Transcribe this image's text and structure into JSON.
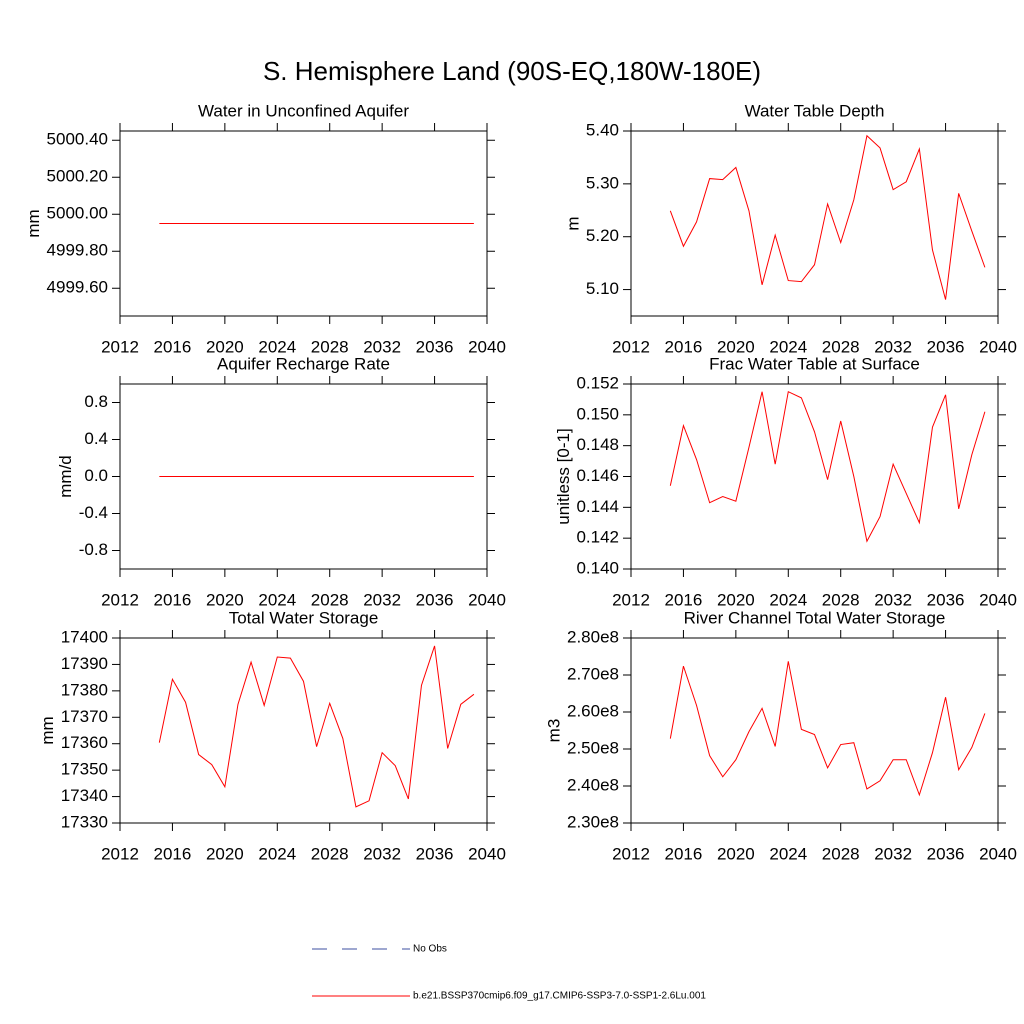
{
  "title": "S. Hemisphere Land (90S-EQ,180W-180E)",
  "chart_data": [
    {
      "type": "line",
      "title": "Water in Unconfined Aquifer",
      "ylabel": "mm",
      "color": "#ff0000",
      "x": [
        2015,
        2016,
        2017,
        2018,
        2019,
        2020,
        2021,
        2022,
        2023,
        2024,
        2025,
        2026,
        2027,
        2028,
        2029,
        2030,
        2031,
        2032,
        2033,
        2034,
        2035,
        2036,
        2037,
        2038,
        2039
      ],
      "values": [
        4999.95,
        4999.95,
        4999.95,
        4999.95,
        4999.95,
        4999.95,
        4999.95,
        4999.95,
        4999.95,
        4999.95,
        4999.95,
        4999.95,
        4999.95,
        4999.95,
        4999.95,
        4999.95,
        4999.95,
        4999.95,
        4999.95,
        4999.95,
        4999.95,
        4999.95,
        4999.95,
        4999.95,
        4999.95
      ],
      "xlim": [
        2012,
        2040
      ],
      "xticks": [
        2012,
        2016,
        2020,
        2024,
        2028,
        2032,
        2036,
        2040
      ],
      "ylim": [
        4999.45,
        5000.45
      ],
      "yticks": [
        {
          "value": 4999.6,
          "label": "4999.60"
        },
        {
          "value": 4999.8,
          "label": "4999.80"
        },
        {
          "value": 5000.0,
          "label": "5000.00"
        },
        {
          "value": 5000.2,
          "label": "5000.20"
        },
        {
          "value": 5000.4,
          "label": "5000.40"
        }
      ]
    },
    {
      "type": "line",
      "title": "Water Table Depth",
      "ylabel": "m",
      "color": "#ff0000",
      "x": [
        2015,
        2016,
        2017,
        2018,
        2019,
        2020,
        2021,
        2022,
        2023,
        2024,
        2025,
        2026,
        2027,
        2028,
        2029,
        2030,
        2031,
        2032,
        2033,
        2034,
        2035,
        2036,
        2037,
        2038,
        2039
      ],
      "values": [
        5.249,
        5.182,
        5.228,
        5.31,
        5.308,
        5.331,
        5.249,
        5.109,
        5.203,
        5.117,
        5.115,
        5.147,
        5.262,
        5.189,
        5.27,
        5.391,
        5.368,
        5.289,
        5.304,
        5.366,
        5.175,
        5.081,
        5.282,
        5.211,
        5.142
      ],
      "xlim": [
        2012,
        2040
      ],
      "xticks": [
        2012,
        2016,
        2020,
        2024,
        2028,
        2032,
        2036,
        2040
      ],
      "ylim": [
        5.05,
        5.4
      ],
      "yticks": [
        {
          "value": 5.1,
          "label": "5.10"
        },
        {
          "value": 5.2,
          "label": "5.20"
        },
        {
          "value": 5.3,
          "label": "5.30"
        },
        {
          "value": 5.4,
          "label": "5.40"
        }
      ]
    },
    {
      "type": "line",
      "title": "Aquifer Recharge Rate",
      "ylabel": "mm/d",
      "color": "#ff0000",
      "x": [
        2015,
        2016,
        2017,
        2018,
        2019,
        2020,
        2021,
        2022,
        2023,
        2024,
        2025,
        2026,
        2027,
        2028,
        2029,
        2030,
        2031,
        2032,
        2033,
        2034,
        2035,
        2036,
        2037,
        2038,
        2039
      ],
      "values": [
        0,
        0,
        0,
        0,
        0,
        0,
        0,
        0,
        0,
        0,
        0,
        0,
        0,
        0,
        0,
        0,
        0,
        0,
        0,
        0,
        0,
        0,
        0,
        0,
        0
      ],
      "xlim": [
        2012,
        2040
      ],
      "xticks": [
        2012,
        2016,
        2020,
        2024,
        2028,
        2032,
        2036,
        2040
      ],
      "ylim": [
        -1.0,
        1.0
      ],
      "yticks": [
        -0.8,
        -0.4,
        {
          "value": 0,
          "label": "0.0"
        },
        0.4,
        0.8
      ]
    },
    {
      "type": "line",
      "title": "Frac Water Table at Surface",
      "ylabel": "unitless [0-1]",
      "color": "#ff0000",
      "x": [
        2015,
        2016,
        2017,
        2018,
        2019,
        2020,
        2021,
        2022,
        2023,
        2024,
        2025,
        2026,
        2027,
        2028,
        2029,
        2030,
        2031,
        2032,
        2033,
        2034,
        2035,
        2036,
        2037,
        2038,
        2039
      ],
      "values": [
        0.1454,
        0.1493,
        0.1471,
        0.1443,
        0.1447,
        0.1444,
        0.1479,
        0.1515,
        0.1468,
        0.1515,
        0.1511,
        0.1489,
        0.1458,
        0.1496,
        0.146,
        0.1418,
        0.1434,
        0.1468,
        0.1449,
        0.143,
        0.1492,
        0.1513,
        0.1439,
        0.1474,
        0.1502
      ],
      "xlim": [
        2012,
        2040
      ],
      "xticks": [
        2012,
        2016,
        2020,
        2024,
        2028,
        2032,
        2036,
        2040
      ],
      "ylim": [
        0.14,
        0.152
      ],
      "yticks": [
        {
          "value": 0.14,
          "label": "0.140"
        },
        0.142,
        0.144,
        0.146,
        0.148,
        {
          "value": 0.15,
          "label": "0.150"
        },
        0.152
      ]
    },
    {
      "type": "line",
      "title": "Total Water Storage",
      "ylabel": "mm",
      "color": "#ff0000",
      "x": [
        2015,
        2016,
        2017,
        2018,
        2019,
        2020,
        2021,
        2022,
        2023,
        2024,
        2025,
        2026,
        2027,
        2028,
        2029,
        2030,
        2031,
        2032,
        2033,
        2034,
        2035,
        2036,
        2037,
        2038,
        2039
      ],
      "values": [
        17360.4,
        17384.4,
        17375.7,
        17355.9,
        17352.1,
        17343.7,
        17374.9,
        17390.9,
        17374.5,
        17392.8,
        17392.4,
        17383.6,
        17358.9,
        17375.3,
        17362.0,
        17336.1,
        17338.4,
        17356.6,
        17351.7,
        17339.1,
        17382.1,
        17397.0,
        17358.2,
        17374.9,
        17378.7
      ],
      "xlim": [
        2012,
        2040
      ],
      "xticks": [
        2012,
        2016,
        2020,
        2024,
        2028,
        2032,
        2036,
        2040
      ],
      "ylim": [
        17330,
        17400
      ],
      "yticks": [
        17330,
        17340,
        17350,
        17360,
        17370,
        17380,
        17390,
        17400
      ]
    },
    {
      "type": "line",
      "title": "River Channel Total Water Storage",
      "ylabel": "m3",
      "color": "#ff0000",
      "x": [
        2015,
        2016,
        2017,
        2018,
        2019,
        2020,
        2021,
        2022,
        2023,
        2024,
        2025,
        2026,
        2027,
        2028,
        2029,
        2030,
        2031,
        2032,
        2033,
        2034,
        2035,
        2036,
        2037,
        2038,
        2039
      ],
      "values": [
        252800000,
        272400000,
        261800000,
        248200000,
        242500000,
        247100000,
        254700000,
        261000000,
        250700000,
        273700000,
        255300000,
        253900000,
        244900000,
        251200000,
        251700000,
        239200000,
        241400000,
        247100000,
        247100000,
        237600000,
        249000000,
        264000000,
        244400000,
        250400000,
        259600000
      ],
      "xlim": [
        2012,
        2040
      ],
      "xticks": [
        2012,
        2016,
        2020,
        2024,
        2028,
        2032,
        2036,
        2040
      ],
      "ylim": [
        230000000,
        280000000
      ],
      "yticks": [
        {
          "value": 230000000,
          "label": "2.30e8"
        },
        {
          "value": 240000000,
          "label": "2.40e8"
        },
        {
          "value": 250000000,
          "label": "2.50e8"
        },
        {
          "value": 260000000,
          "label": "2.60e8"
        },
        {
          "value": 270000000,
          "label": "2.70e8"
        },
        {
          "value": 280000000,
          "label": "2.80e8"
        }
      ]
    }
  ],
  "legend": [
    {
      "name": "No Obs",
      "color": "#3c4fa0",
      "dash": true
    },
    {
      "name": "b.e21.BSSP370cmip6.f09_g17.CMIP6-SSP3-7.0-SSP1-2.6Lu.001",
      "color": "#ff0000",
      "dash": false
    }
  ]
}
